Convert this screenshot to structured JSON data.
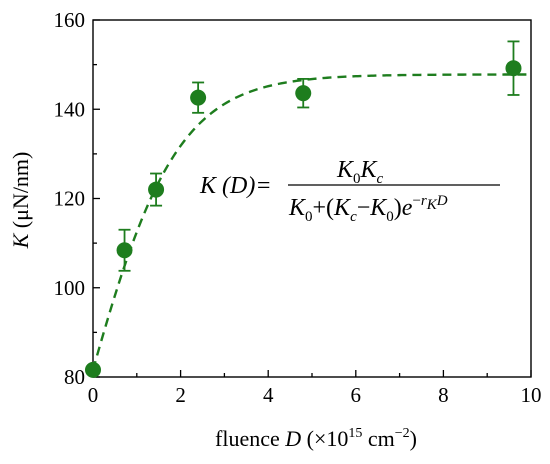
{
  "chart_data": {
    "type": "scatter",
    "xlabel_prefix": "fluence ",
    "xlabel_var": "D",
    "xlabel_unit": "(×10",
    "xlabel_exp": "15",
    "xlabel_unit2": " cm",
    "xlabel_exp2": "−2",
    "xlabel_close": ")",
    "ylabel_var": "K",
    "ylabel_unit": " (μN/nm)",
    "xlim": [
      0,
      10
    ],
    "ylim": [
      80,
      160
    ],
    "x_ticks": [
      0,
      2,
      4,
      6,
      8,
      10
    ],
    "y_ticks": [
      80,
      100,
      120,
      140,
      160
    ],
    "x_tick_labels": [
      "0",
      "2",
      "4",
      "6",
      "8",
      "10"
    ],
    "y_tick_labels": [
      "80",
      "100",
      "120",
      "140",
      "160"
    ],
    "grid": false,
    "color": "#1e7d1e",
    "points": [
      {
        "x": 0.0,
        "y": 81.6,
        "err": 0
      },
      {
        "x": 0.72,
        "y": 108.4,
        "err": 4.6
      },
      {
        "x": 1.44,
        "y": 122.0,
        "err": 3.6
      },
      {
        "x": 2.4,
        "y": 142.6,
        "err": 3.4
      },
      {
        "x": 4.8,
        "y": 143.6,
        "err": 3.2
      },
      {
        "x": 9.6,
        "y": 149.2,
        "err": 6.0
      }
    ],
    "fit": {
      "K0": 81.6,
      "Kc": 147.8,
      "rK": 0.95,
      "style": "dashed"
    },
    "equation": {
      "lhs": "K (D)=",
      "num_K0": "K",
      "num_sub0": "0",
      "num_Kc": "K",
      "num_subc": "c",
      "den_a": "K",
      "den_a_sub": "0",
      "den_b": "+(",
      "den_c": "K",
      "den_c_sub": "c",
      "den_d": "−",
      "den_e": "K",
      "den_e_sub": "0",
      "den_f": ")",
      "den_g": "e",
      "exp_a": "−",
      "exp_r": "r",
      "exp_sub": "K",
      "exp_d": "D"
    }
  }
}
